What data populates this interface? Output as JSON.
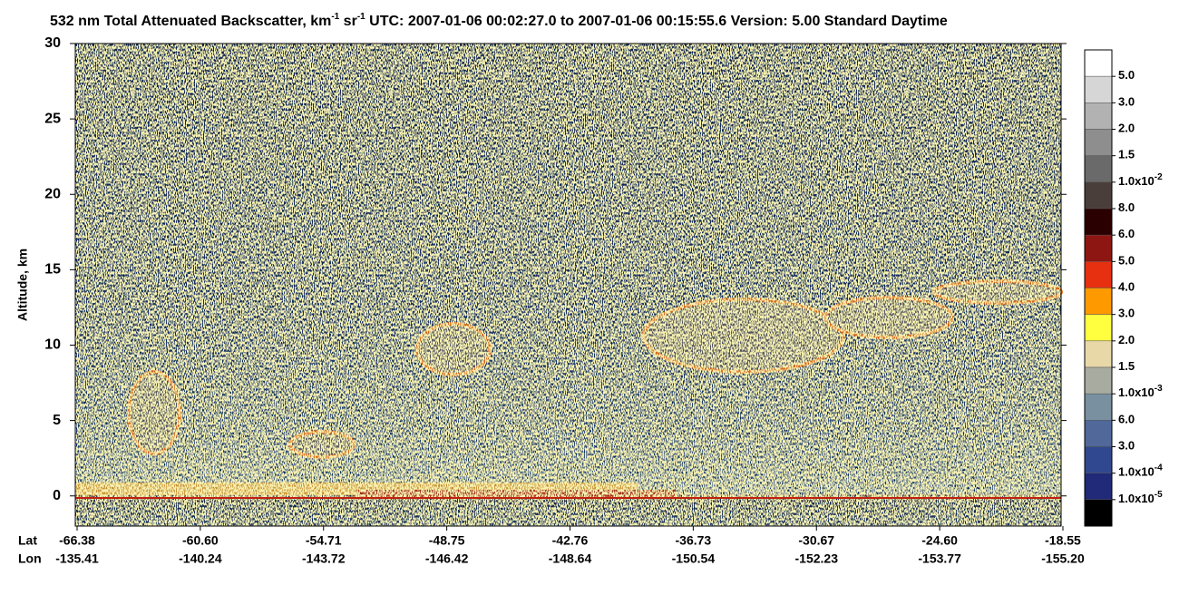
{
  "chart_data": {
    "type": "heatmap",
    "title": [
      {
        "text": "532 nm Total Attenuated Backscatter, km"
      },
      {
        "text": "-1",
        "sup": true
      },
      {
        "text": " sr"
      },
      {
        "text": "-1",
        "sup": true
      },
      {
        "text": "    UTC:  2007-01-06 00:02:27.0  to  2007-01-06 00:15:55.6    Version: 5.00  Standard  Daytime"
      }
    ],
    "ylabel": "Altitude, km",
    "ylim": [
      -2,
      30
    ],
    "yticks": [
      0,
      5,
      10,
      15,
      20,
      25,
      30
    ],
    "x_rows": [
      {
        "name": "Lat",
        "labels": [
          "-66.38",
          "-60.60",
          "-54.71",
          "-48.75",
          "-42.76",
          "-36.73",
          "-30.67",
          "-24.60",
          "-18.55"
        ]
      },
      {
        "name": "Lon",
        "labels": [
          "-135.41",
          "-140.24",
          "-143.72",
          "-146.42",
          "-148.64",
          "-150.54",
          "-152.23",
          "-153.77",
          "-155.20"
        ]
      }
    ],
    "colorbar": {
      "colors": [
        "#ffffff",
        "#d6d6d6",
        "#b2b2b2",
        "#8e8e8e",
        "#6a6a6a",
        "#4a3e3a",
        "#2a0000",
        "#8e1612",
        "#e63010",
        "#ff9900",
        "#ffff40",
        "#e8d8a8",
        "#a8aca0",
        "#7890a0",
        "#50689a",
        "#304890",
        "#202a78",
        "#000000"
      ],
      "labels": [
        {
          "text": "5.0"
        },
        {
          "text": "3.0"
        },
        {
          "text": "2.0"
        },
        {
          "text": "1.5"
        },
        {
          "text": "1.0x10",
          "sup": "-2"
        },
        {
          "text": "8.0"
        },
        {
          "text": "6.0"
        },
        {
          "text": "5.0"
        },
        {
          "text": "4.0"
        },
        {
          "text": "3.0"
        },
        {
          "text": "2.0"
        },
        {
          "text": "1.5"
        },
        {
          "text": "1.0x10",
          "sup": "-3"
        },
        {
          "text": "6.0"
        },
        {
          "text": "3.0"
        },
        {
          "text": "1.0x10",
          "sup": "-4"
        },
        {
          "text": "1.0x10",
          "sup": "-5"
        }
      ]
    }
  }
}
